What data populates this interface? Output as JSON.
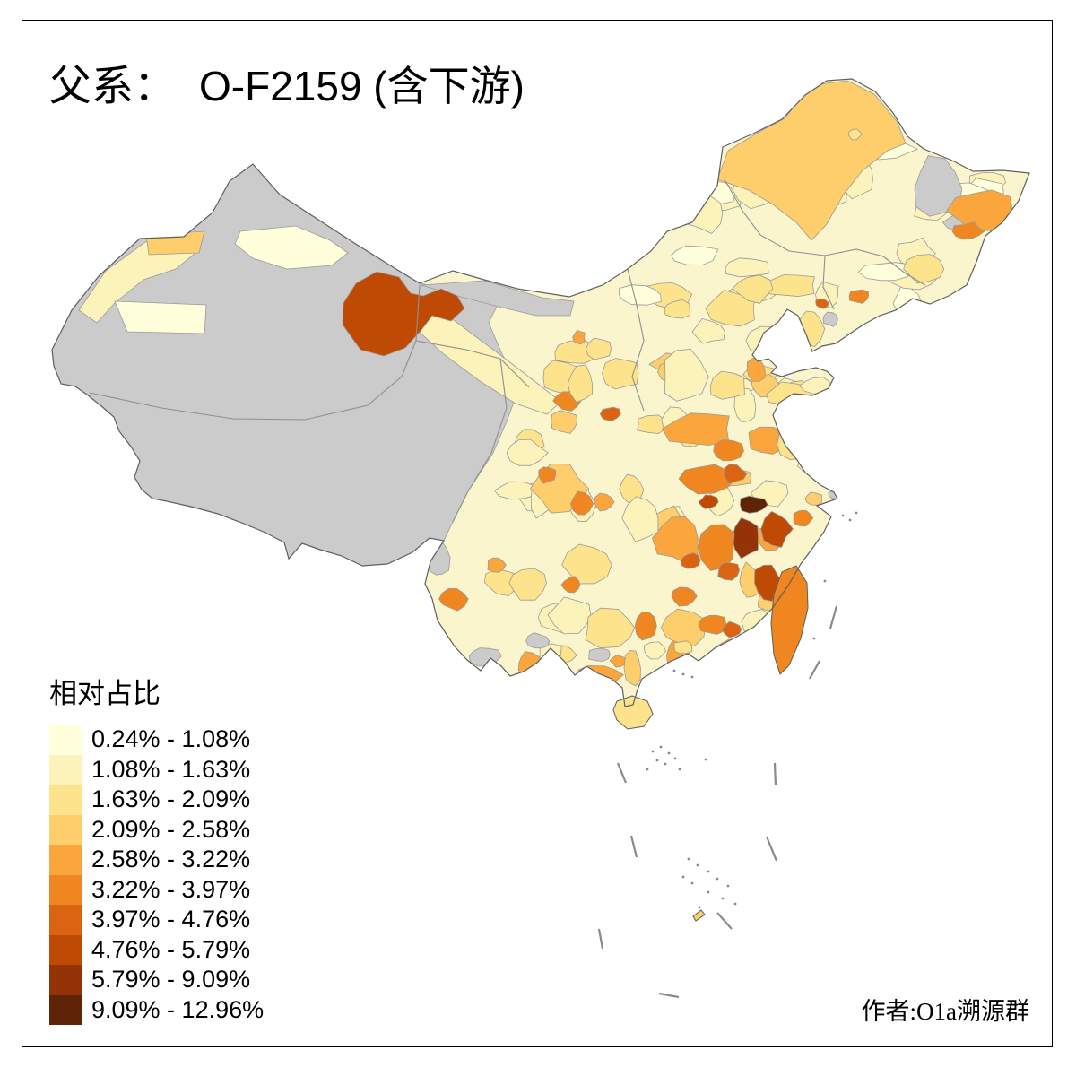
{
  "title": {
    "label": "父系：",
    "value": "O-F2159 (含下游)"
  },
  "legend": {
    "title": "相对占比",
    "items": [
      {
        "range": "0.24% - 1.08%",
        "color": "#FFFFDB"
      },
      {
        "range": "1.08% - 1.63%",
        "color": "#FBF3B9"
      },
      {
        "range": "1.63% - 2.09%",
        "color": "#FDE38C"
      },
      {
        "range": "2.09% - 2.58%",
        "color": "#FDCE6B"
      },
      {
        "range": "2.58% - 3.22%",
        "color": "#FAA63C"
      },
      {
        "range": "3.22% - 3.97%",
        "color": "#F0861F"
      },
      {
        "range": "3.97% - 4.76%",
        "color": "#DB6413"
      },
      {
        "range": "4.76% - 5.79%",
        "color": "#BF4A04"
      },
      {
        "range": "5.79% - 9.09%",
        "color": "#943305"
      },
      {
        "range": "9.09% - 12.96%",
        "color": "#5F2407"
      }
    ]
  },
  "attribution": "作者:O1a溯源群",
  "map": {
    "type": "choropleth",
    "subject": "China prefecture-level relative frequency of paternal haplogroup O-F2159",
    "sea_color": "#FFFFFF",
    "base_color": "#FBF5CE",
    "no_data_color": "#CBCBCB",
    "border_color": "#9A9A9A",
    "outline_color": "#606060",
    "dash_line_color": "#8A8A8A",
    "regions": [
      {
        "id": "west-plateau",
        "legend_class": 0
      },
      {
        "id": "beishan",
        "legend_class": 0
      },
      {
        "id": "nw-yunnan",
        "legend_class": 0
      },
      {
        "id": "ili",
        "legend_class": 2
      },
      {
        "id": "tacheng",
        "legend_class": 4
      },
      {
        "id": "urumqi",
        "legend_class": 1
      },
      {
        "id": "korla",
        "legend_class": 1
      },
      {
        "id": "hexi-corridor",
        "legend_class": 2
      },
      {
        "id": "jiuquan",
        "legend_class": 8
      },
      {
        "id": "khingan",
        "legend_class": 4
      },
      {
        "id": "hlj-dot",
        "legend_class": 3
      },
      {
        "id": "ne-russia-gray",
        "legend_class": 0
      },
      {
        "id": "ne-russia-gray2",
        "legend_class": 0
      },
      {
        "id": "jixi",
        "legend_class": 5
      },
      {
        "id": "jixi2",
        "legend_class": 6
      },
      {
        "id": "mudanjiang",
        "legend_class": 3
      },
      {
        "id": "liaoning-spot",
        "legend_class": 7
      },
      {
        "id": "dandong-orange",
        "legend_class": 6
      },
      {
        "id": "panjin-gray",
        "legend_class": 0
      },
      {
        "id": "chifeng",
        "legend_class": 3
      },
      {
        "id": "baotou",
        "legend_class": 3
      },
      {
        "id": "ordos",
        "legend_class": 4
      },
      {
        "id": "wuhai",
        "legend_class": 5
      },
      {
        "id": "hohhot",
        "legend_class": 2
      },
      {
        "id": "chengde",
        "legend_class": 2
      },
      {
        "id": "tianjin",
        "legend_class": 5
      },
      {
        "id": "hebei",
        "legend_class": 3
      },
      {
        "id": "shandong-w",
        "legend_class": 3
      },
      {
        "id": "shandong-e",
        "legend_class": 2
      },
      {
        "id": "shanxi",
        "legend_class": 2
      },
      {
        "id": "shaanxi-spot",
        "legend_class": 6
      },
      {
        "id": "shaanxi-spot2",
        "legend_class": 7
      },
      {
        "id": "ningxia",
        "legend_class": 3
      },
      {
        "id": "gansu-se",
        "legend_class": 4
      },
      {
        "id": "henan",
        "legend_class": 5
      },
      {
        "id": "henan-dark",
        "legend_class": 6
      },
      {
        "id": "hubei",
        "legend_class": 6
      },
      {
        "id": "hubei-dark",
        "legend_class": 7
      },
      {
        "id": "hubei-spot",
        "legend_class": 8
      },
      {
        "id": "anhui-n",
        "legend_class": 5
      },
      {
        "id": "jiangsu",
        "legend_class": 3
      },
      {
        "id": "jiangsu2",
        "legend_class": 2
      },
      {
        "id": "wannan-10",
        "legend_class": 10
      },
      {
        "id": "wannan-9",
        "legend_class": 9
      },
      {
        "id": "zhejiang-8",
        "legend_class": 8
      },
      {
        "id": "shanghai-sub",
        "legend_class": 4
      },
      {
        "id": "zhejiang-coast",
        "legend_class": 6
      },
      {
        "id": "fujian-8",
        "legend_class": 8
      },
      {
        "id": "fujian-coast",
        "legend_class": 4
      },
      {
        "id": "jiangxi",
        "legend_class": 6
      },
      {
        "id": "jiangxi-dark",
        "legend_class": 7
      },
      {
        "id": "hunan",
        "legend_class": 5
      },
      {
        "id": "hunan-dark",
        "legend_class": 7
      },
      {
        "id": "xiangxi",
        "legend_class": 2
      },
      {
        "id": "sichuan-pale",
        "legend_class": 2
      },
      {
        "id": "sichuan-basin",
        "legend_class": 4
      },
      {
        "id": "chengdu-spot",
        "legend_class": 6
      },
      {
        "id": "sichuan-orange",
        "legend_class": 6
      },
      {
        "id": "chongqing",
        "legend_class": 5
      },
      {
        "id": "guizhou",
        "legend_class": 3
      },
      {
        "id": "guizhou-orange",
        "legend_class": 6
      },
      {
        "id": "yunnan-w-orange",
        "legend_class": 6
      },
      {
        "id": "yunnan-orange2",
        "legend_class": 5
      },
      {
        "id": "yunnan-gray-s",
        "legend_class": 0
      },
      {
        "id": "yunnan-gray-s2",
        "legend_class": 0
      },
      {
        "id": "guangxi",
        "legend_class": 3
      },
      {
        "id": "guangxi-sw-gray",
        "legend_class": 0
      },
      {
        "id": "guangxi-orange",
        "legend_class": 5
      },
      {
        "id": "wuzhou",
        "legend_class": 6
      },
      {
        "id": "guangdong-w",
        "legend_class": 2
      },
      {
        "id": "guangdong",
        "legend_class": 4
      },
      {
        "id": "guangdong-orange",
        "legend_class": 6
      },
      {
        "id": "guangdong-dark",
        "legend_class": 7
      },
      {
        "id": "pearl",
        "legend_class": 3
      },
      {
        "id": "nanling",
        "legend_class": 6
      },
      {
        "id": "leizhou",
        "legend_class": 4
      },
      {
        "id": "chongming-gray",
        "legend_class": 0
      },
      {
        "id": "taiwan",
        "legend_class": 6
      },
      {
        "id": "hainan",
        "legend_class": 3
      },
      {
        "id": "scs-island",
        "legend_class": 4
      }
    ]
  }
}
